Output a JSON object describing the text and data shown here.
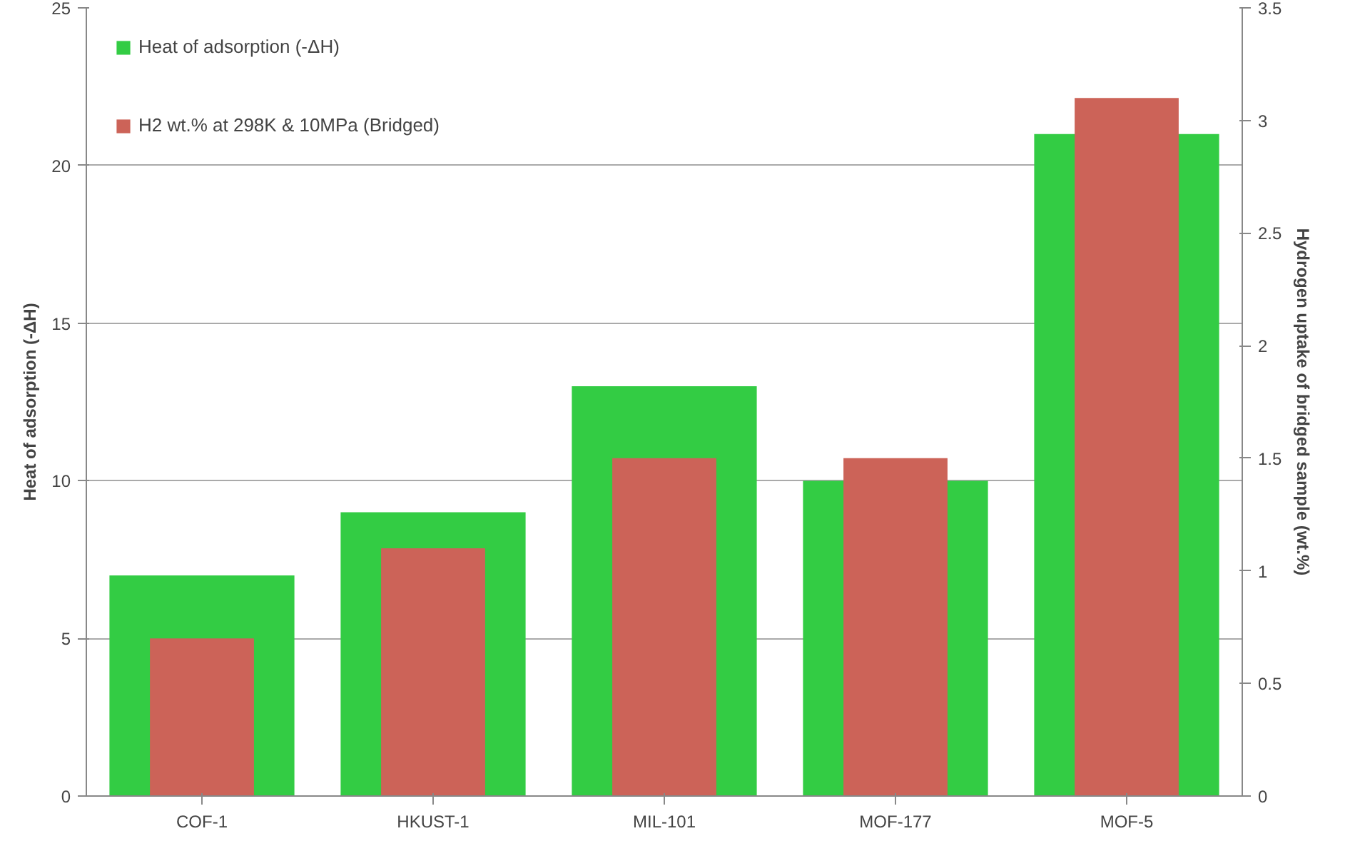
{
  "chart_data": {
    "type": "bar",
    "categories": [
      "COF-1",
      "HKUST-1",
      "MIL-101",
      "MOF-177",
      "MOF-5"
    ],
    "ylabel": "Heat of adsorption (-ΔH)",
    "y2label": "Hydrogen uptake of bridged sample (wt.%)",
    "series": [
      {
        "name": "Heat of adsorption (-ΔH)",
        "color": "#33cc44",
        "values": [
          7,
          9,
          13,
          10,
          21
        ]
      },
      {
        "name": "H2 wt.% at 298K & 10MPa (Bridged)",
        "color": "#cc6358",
        "values": [
          0.7,
          1.1,
          1.5,
          1.5,
          3.1
        ],
        "axis": "y2"
      }
    ],
    "ylim": [
      0,
      25
    ],
    "yticks": [
      0,
      5,
      10,
      15,
      20,
      25
    ],
    "y2lim": [
      0,
      3.5
    ],
    "y2ticks": [
      0,
      0.5,
      1,
      1.5,
      2,
      2.5,
      3,
      3.5
    ],
    "grid": "y",
    "legend": "top left"
  }
}
